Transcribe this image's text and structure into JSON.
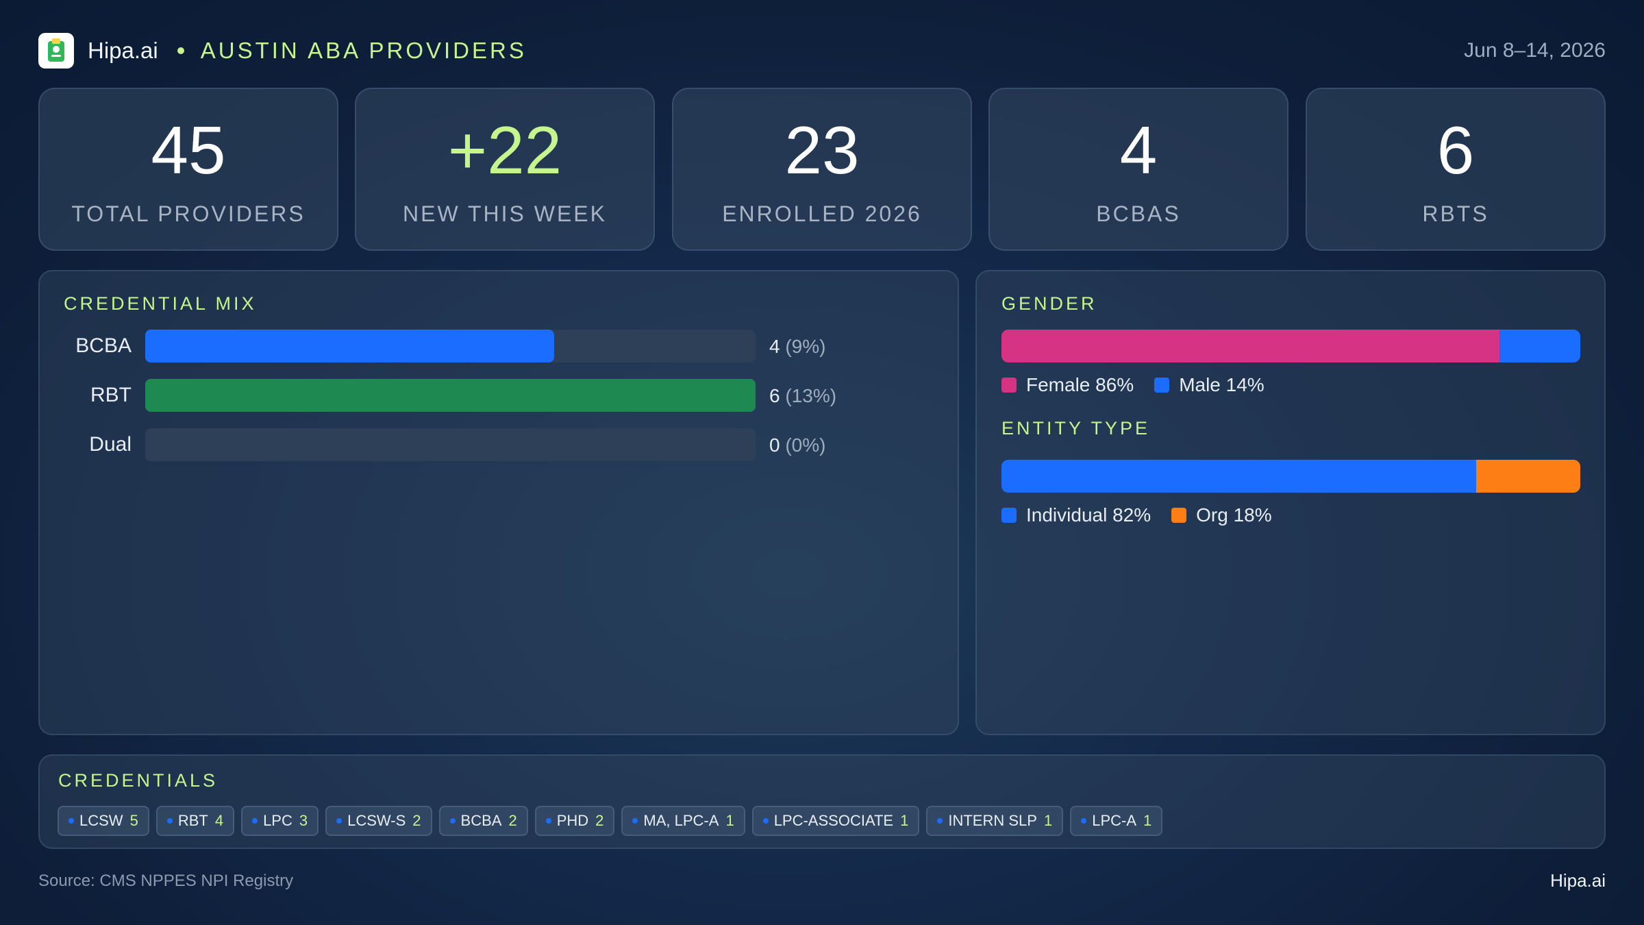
{
  "header": {
    "brand": "Hipa.ai",
    "project": "AUSTIN ABA PROVIDERS",
    "date_range": "Jun 8–14, 2026",
    "logo_icon": "clipboard-logo-icon"
  },
  "stats": [
    {
      "value": "45",
      "label": "TOTAL PROVIDERS"
    },
    {
      "value": "+22",
      "label": "NEW THIS WEEK"
    },
    {
      "value": "23",
      "label": "ENROLLED 2026"
    },
    {
      "value": "4",
      "label": "BCBAS"
    },
    {
      "value": "6",
      "label": "RBTS"
    }
  ],
  "credential_mix": {
    "title": "CREDENTIAL MIX",
    "rows": [
      {
        "label": "BCBA",
        "count": "4",
        "pct": "(9%)",
        "fraction": 0.67,
        "color": "#1a6dff"
      },
      {
        "label": "RBT",
        "count": "6",
        "pct": "(13%)",
        "fraction": 1.0,
        "color": "#1e8a52"
      },
      {
        "label": "Dual",
        "count": "0",
        "pct": "(0%)",
        "fraction": 0.0,
        "color": "#1a6dff"
      }
    ]
  },
  "gender": {
    "title": "GENDER",
    "segments": [
      {
        "label": "Female 86%",
        "percent": 86,
        "color": "#d63384"
      },
      {
        "label": "Male 14%",
        "percent": 14,
        "color": "#1a6dff"
      }
    ]
  },
  "entity_type": {
    "title": "ENTITY TYPE",
    "segments": [
      {
        "label": "Individual 82%",
        "percent": 82,
        "color": "#1a6dff"
      },
      {
        "label": "Org 18%",
        "percent": 18,
        "color": "#fd7e14"
      }
    ]
  },
  "credentials": {
    "title": "CREDENTIALS",
    "chips": [
      {
        "name": "LCSW",
        "count": "5"
      },
      {
        "name": "RBT",
        "count": "4"
      },
      {
        "name": "LPC",
        "count": "3"
      },
      {
        "name": "LCSW-S",
        "count": "2"
      },
      {
        "name": "BCBA",
        "count": "2"
      },
      {
        "name": "PHD",
        "count": "2"
      },
      {
        "name": "MA, LPC-A",
        "count": "1"
      },
      {
        "name": "LPC-ASSOCIATE",
        "count": "1"
      },
      {
        "name": "INTERN SLP",
        "count": "1"
      },
      {
        "name": "LPC-A",
        "count": "1"
      }
    ]
  },
  "footer": {
    "source": "Source: CMS NPPES NPI Registry",
    "brand": "Hipa.ai"
  }
}
